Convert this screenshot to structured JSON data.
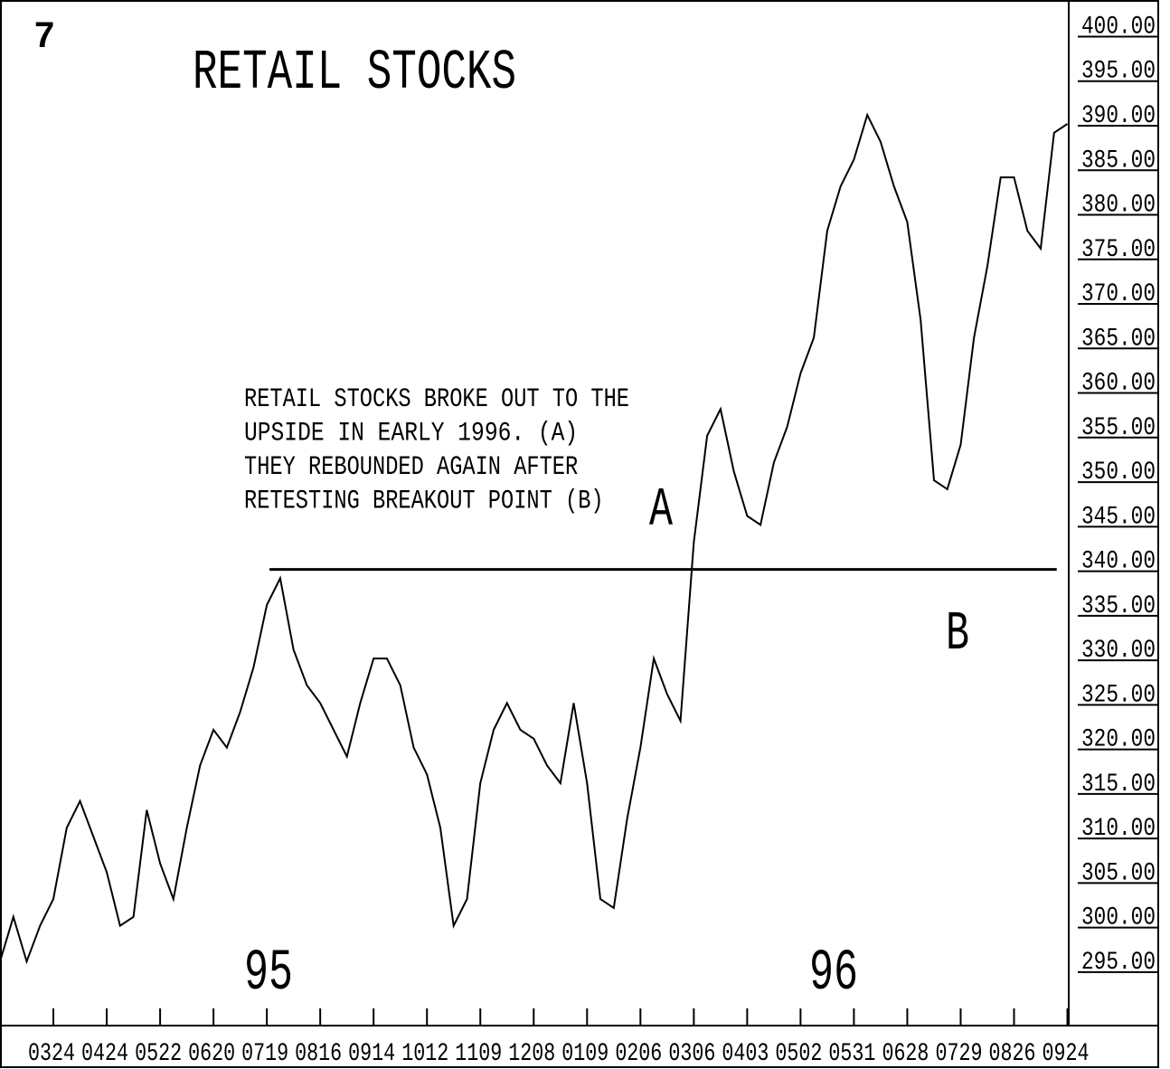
{
  "chart_data": {
    "type": "line",
    "panel_number": "7",
    "title": "RETAIL STOCKS",
    "annotation_lines": [
      "RETAIL STOCKS BROKE OUT TO THE",
      "UPSIDE IN EARLY 1996.  (A)",
      "THEY REBOUNDED AGAIN AFTER",
      "RETESTING BREAKOUT POINT (B)"
    ],
    "point_labels": [
      "A",
      "B"
    ],
    "year_labels": [
      "95",
      "96"
    ],
    "x": [
      0,
      1,
      2,
      3,
      4,
      5,
      6,
      7,
      8,
      9,
      10,
      11,
      12,
      13,
      14,
      15,
      16,
      17,
      18,
      19,
      20,
      21,
      22,
      23,
      24,
      25,
      26,
      27,
      28,
      29,
      30,
      31,
      32,
      33,
      34,
      35,
      36,
      37,
      38,
      39,
      40,
      41,
      42,
      43,
      44,
      45,
      46,
      47,
      48,
      49,
      50,
      51,
      52,
      53,
      54,
      55,
      56,
      57,
      58,
      59,
      60,
      61,
      62,
      63,
      64,
      65,
      66,
      67,
      68,
      69,
      70,
      71,
      72,
      73,
      74,
      75,
      76,
      77,
      78,
      79,
      80
    ],
    "series": [
      {
        "color": "#000000",
        "values": [
          296,
          301,
          296,
          300,
          303,
          311,
          314,
          310,
          306,
          300,
          301,
          313,
          307,
          303,
          311,
          318,
          322,
          320,
          324,
          329,
          336,
          339,
          331,
          327,
          325,
          322,
          319,
          325,
          330,
          330,
          327,
          320,
          317,
          311,
          300,
          303,
          316,
          322,
          325,
          322,
          321,
          318,
          316,
          325,
          316,
          303,
          302,
          312,
          320,
          330,
          326,
          323,
          343,
          355,
          358,
          351,
          346,
          345,
          352,
          356,
          362,
          366,
          378,
          383,
          386,
          391,
          388,
          383,
          379,
          368,
          350,
          349,
          354,
          366,
          374,
          384,
          384,
          378,
          376,
          389,
          390
        ]
      }
    ],
    "reference_line": {
      "y": 340,
      "x": [
        20.2,
        79.2
      ]
    },
    "xlim": [
      0,
      80.1
    ],
    "xticks": [
      {
        "value": 4,
        "label": "0324"
      },
      {
        "value": 8,
        "label": "0424"
      },
      {
        "value": 12,
        "label": "0522"
      },
      {
        "value": 16,
        "label": "0620"
      },
      {
        "value": 20,
        "label": "0719"
      },
      {
        "value": 24,
        "label": "0816"
      },
      {
        "value": 28,
        "label": "0914"
      },
      {
        "value": 32,
        "label": "1012"
      },
      {
        "value": 36,
        "label": "1109"
      },
      {
        "value": 40,
        "label": "1208"
      },
      {
        "value": 44,
        "label": "0109"
      },
      {
        "value": 48,
        "label": "0206"
      },
      {
        "value": 52,
        "label": "0306"
      },
      {
        "value": 56,
        "label": "0403"
      },
      {
        "value": 60,
        "label": "0502"
      },
      {
        "value": 64,
        "label": "0531"
      },
      {
        "value": 68,
        "label": "0628"
      },
      {
        "value": 72,
        "label": "0729"
      },
      {
        "value": 76,
        "label": "0826"
      },
      {
        "value": 80,
        "label": "0924"
      }
    ],
    "ylim": [
      288.9,
      403.5
    ],
    "yticks": [
      {
        "value": 400,
        "label": "400.00"
      },
      {
        "value": 395,
        "label": "395.00"
      },
      {
        "value": 390,
        "label": "390.00"
      },
      {
        "value": 385,
        "label": "385.00"
      },
      {
        "value": 380,
        "label": "380.00"
      },
      {
        "value": 375,
        "label": "375.00"
      },
      {
        "value": 370,
        "label": "370.00"
      },
      {
        "value": 365,
        "label": "365.00"
      },
      {
        "value": 360,
        "label": "360.00"
      },
      {
        "value": 355,
        "label": "355.00"
      },
      {
        "value": 350,
        "label": "350.00"
      },
      {
        "value": 345,
        "label": "345.00"
      },
      {
        "value": 340,
        "label": "340.00"
      },
      {
        "value": 335,
        "label": "335.00"
      },
      {
        "value": 330,
        "label": "330.00"
      },
      {
        "value": 325,
        "label": "325.00"
      },
      {
        "value": 320,
        "label": "320.00"
      },
      {
        "value": 315,
        "label": "315.00"
      },
      {
        "value": 310,
        "label": "310.00"
      },
      {
        "value": 305,
        "label": "305.00"
      },
      {
        "value": 300,
        "label": "300.00"
      },
      {
        "value": 295,
        "label": "295.00"
      }
    ]
  }
}
